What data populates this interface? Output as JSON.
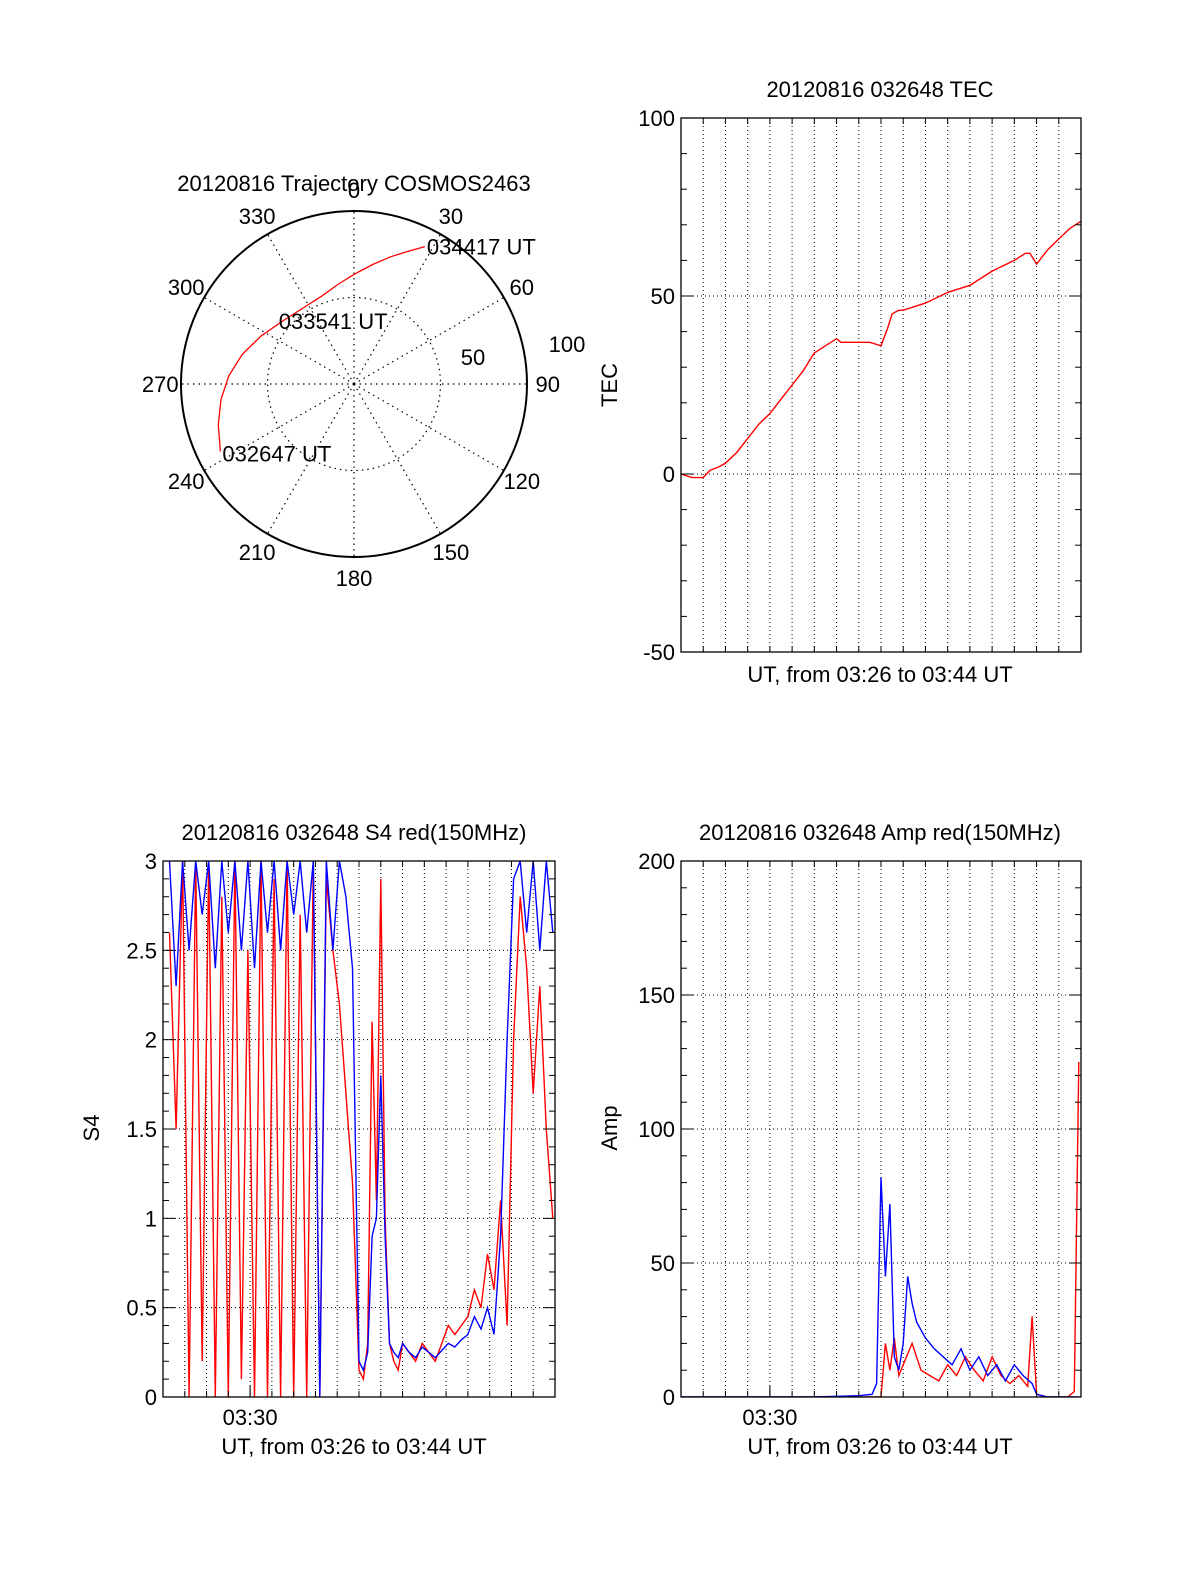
{
  "chart_data": [
    {
      "id": "polar",
      "type": "polar-trajectory",
      "title": "20120816 Trajectory COSMOS2463",
      "azimuth_labels": [
        {
          "az": 0,
          "text": "0"
        },
        {
          "az": 30,
          "text": "30"
        },
        {
          "az": 60,
          "text": "60"
        },
        {
          "az": 90,
          "text": "90"
        },
        {
          "az": 120,
          "text": "120"
        },
        {
          "az": 150,
          "text": "150"
        },
        {
          "az": 180,
          "text": "180"
        },
        {
          "az": 210,
          "text": "210"
        },
        {
          "az": 240,
          "text": "240"
        },
        {
          "az": 270,
          "text": "270"
        },
        {
          "az": 300,
          "text": "300"
        },
        {
          "az": 330,
          "text": "330"
        }
      ],
      "radial_labels": [
        "50",
        "100"
      ],
      "radial_max": 100,
      "ring_values": [
        50
      ],
      "series": [
        {
          "color": "#ff0000",
          "points_az_r": [
            [
              243.2,
              86.5
            ],
            [
              253.3,
              81.9
            ],
            [
              263.4,
              77.4
            ],
            [
              273.7,
              72.5
            ],
            [
              284.9,
              66.8
            ],
            [
              297.5,
              60.4
            ],
            [
              311.5,
              55.0
            ],
            [
              326.2,
              52.9
            ],
            [
              340.0,
              54.2
            ],
            [
              351.2,
              58.5
            ],
            [
              0.8,
              63.8
            ],
            [
              8.9,
              69.9
            ],
            [
              16.0,
              76.5
            ],
            [
              22.1,
              82.7
            ],
            [
              27.3,
              89.4
            ]
          ]
        }
      ],
      "point_labels": [
        {
          "text": "032647 UT",
          "az": 243.2,
          "r": 86.5
        },
        {
          "text": "033541 UT",
          "az": 311.5,
          "r": 55.0
        },
        {
          "text": "034417 UT",
          "az": 27.3,
          "r": 89.4
        }
      ]
    },
    {
      "id": "tec",
      "type": "line",
      "title": "20120816 032648 TEC",
      "xlabel": "UT, from 03:26 to 03:44 UT",
      "ylabel": "TEC",
      "xlim": [
        0,
        18.0
      ],
      "ylim": [
        -50,
        100
      ],
      "yticks": [
        -50,
        0,
        50,
        100
      ],
      "xtick_labels": [],
      "grid": true,
      "series": [
        {
          "color": "#ff0000",
          "x": [
            0.0,
            0.5,
            1.0,
            1.3,
            1.7,
            2.0,
            2.5,
            3.0,
            3.5,
            4.0,
            4.5,
            5.0,
            5.5,
            6.0,
            6.5,
            7.0,
            7.2,
            7.6,
            8.0,
            8.5,
            9.0,
            9.3,
            9.5,
            9.8,
            10.0,
            10.5,
            11.0,
            12.0,
            13.0,
            14.0,
            15.0,
            15.5,
            15.7,
            16.0,
            16.5,
            17.0,
            17.5,
            18.0
          ],
          "y": [
            0,
            -1,
            -1,
            1,
            2,
            3,
            6,
            10,
            14,
            17,
            21,
            25,
            29,
            34,
            36,
            38,
            37,
            37,
            37,
            37,
            36,
            41,
            45,
            46,
            46,
            47,
            48,
            51,
            53,
            57,
            60,
            62,
            62,
            59,
            63,
            66,
            69,
            71
          ]
        }
      ]
    },
    {
      "id": "s4",
      "type": "line",
      "title": "20120816 032648 S4 red(150MHz)",
      "xlabel": "UT, from 03:26 to 03:44 UT",
      "ylabel": "S4",
      "xlim": [
        0,
        18.0
      ],
      "ylim": [
        0,
        3
      ],
      "yticks": [
        0,
        0.5,
        1,
        1.5,
        2,
        2.5,
        3
      ],
      "ytick_labels": [
        "0",
        "0.5",
        "1",
        "1.5",
        "2",
        "2.5",
        "3"
      ],
      "xticks": [
        4
      ],
      "xtick_labels": [
        "03:30"
      ],
      "grid": true,
      "series": [
        {
          "color": "#ff0000",
          "x": [
            0.3,
            0.6,
            0.9,
            1.2,
            1.5,
            1.8,
            2.1,
            2.4,
            2.7,
            3.0,
            3.3,
            3.6,
            3.9,
            4.2,
            4.5,
            4.8,
            5.1,
            5.4,
            5.7,
            6.0,
            6.3,
            6.6,
            6.9,
            7.2,
            7.5,
            7.8,
            8.1,
            8.4,
            8.7,
            9.0,
            9.2,
            9.4,
            9.6,
            9.8,
            10.0,
            10.2,
            10.4,
            10.6,
            10.8,
            11.0,
            11.3,
            11.6,
            11.9,
            12.2,
            12.5,
            12.8,
            13.1,
            13.4,
            13.7,
            14.0,
            14.3,
            14.6,
            14.9,
            15.2,
            15.5,
            15.8,
            16.1,
            16.4,
            16.7,
            17.0,
            17.3,
            17.6,
            17.9
          ],
          "y": [
            2.6,
            1.5,
            3.0,
            0.0,
            3.0,
            0.2,
            3.0,
            0.0,
            2.8,
            0.0,
            3.0,
            0.1,
            2.5,
            0.0,
            3.0,
            0.0,
            2.9,
            0.0,
            3.0,
            0.0,
            2.7,
            0.0,
            3.0,
            0.0,
            2.9,
            2.5,
            2.2,
            1.7,
            1.2,
            0.15,
            0.1,
            0.3,
            2.1,
            1.1,
            2.9,
            1.0,
            0.3,
            0.2,
            0.15,
            0.3,
            0.25,
            0.2,
            0.3,
            0.25,
            0.2,
            0.3,
            0.4,
            0.35,
            0.4,
            0.45,
            0.6,
            0.5,
            0.8,
            0.6,
            1.1,
            0.4,
            2.0,
            2.8,
            2.4,
            1.7,
            2.3,
            1.5,
            1.0
          ]
        },
        {
          "color": "#0000ff",
          "x": [
            0.3,
            0.6,
            0.9,
            1.2,
            1.5,
            1.8,
            2.1,
            2.4,
            2.7,
            3.0,
            3.3,
            3.6,
            3.9,
            4.2,
            4.5,
            4.8,
            5.1,
            5.4,
            5.7,
            6.0,
            6.3,
            6.6,
            6.9,
            7.2,
            7.5,
            7.8,
            8.1,
            8.4,
            8.7,
            9.0,
            9.2,
            9.4,
            9.6,
            9.8,
            10.0,
            10.2,
            10.4,
            10.6,
            10.8,
            11.0,
            11.3,
            11.6,
            11.9,
            12.2,
            12.5,
            12.8,
            13.1,
            13.4,
            13.7,
            14.0,
            14.3,
            14.6,
            14.9,
            15.2,
            15.5,
            15.8,
            16.1,
            16.4,
            16.7,
            17.0,
            17.3,
            17.6,
            17.9
          ],
          "y": [
            3.0,
            2.3,
            3.0,
            2.5,
            3.0,
            2.7,
            3.0,
            2.4,
            3.0,
            2.6,
            3.0,
            2.5,
            3.0,
            2.4,
            3.0,
            2.6,
            3.0,
            2.5,
            3.0,
            2.7,
            3.0,
            2.6,
            3.0,
            0.0,
            3.0,
            2.5,
            3.0,
            2.8,
            2.4,
            0.2,
            0.15,
            0.25,
            0.9,
            1.0,
            1.8,
            0.9,
            0.3,
            0.25,
            0.22,
            0.3,
            0.25,
            0.22,
            0.28,
            0.25,
            0.22,
            0.26,
            0.3,
            0.28,
            0.32,
            0.35,
            0.45,
            0.38,
            0.5,
            0.35,
            0.9,
            2.0,
            2.9,
            3.0,
            2.6,
            3.0,
            2.5,
            3.0,
            2.6
          ]
        }
      ]
    },
    {
      "id": "amp",
      "type": "line",
      "title": "20120816 032648 Amp red(150MHz)",
      "xlabel": "UT, from 03:26 to 03:44 UT",
      "ylabel": "Amp",
      "xlim": [
        0,
        18.0
      ],
      "ylim": [
        0,
        200
      ],
      "yticks": [
        0,
        50,
        100,
        150,
        200
      ],
      "xticks": [
        4
      ],
      "xtick_labels": [
        "03:30"
      ],
      "grid": true,
      "series": [
        {
          "color": "#ff0000",
          "x": [
            0.0,
            2.0,
            4.0,
            6.0,
            8.0,
            9.0,
            9.2,
            9.4,
            9.6,
            9.8,
            10.0,
            10.4,
            10.8,
            11.2,
            11.6,
            12.0,
            12.4,
            12.8,
            13.2,
            13.6,
            14.0,
            14.4,
            14.8,
            15.2,
            15.6,
            15.8,
            16.0,
            16.5,
            17.0,
            17.4,
            17.7,
            17.9
          ],
          "y": [
            0,
            0,
            0,
            0,
            0,
            0,
            20,
            10,
            22,
            8,
            12,
            20,
            10,
            8,
            6,
            12,
            8,
            15,
            10,
            6,
            15,
            8,
            5,
            8,
            4,
            30,
            1,
            0,
            0,
            0,
            2,
            125
          ]
        },
        {
          "color": "#0000ff",
          "x": [
            0.0,
            2.0,
            4.0,
            6.0,
            8.0,
            8.6,
            8.8,
            9.0,
            9.2,
            9.4,
            9.6,
            9.8,
            10.0,
            10.2,
            10.4,
            10.6,
            10.8,
            11.0,
            11.4,
            11.8,
            12.2,
            12.6,
            13.0,
            13.4,
            13.8,
            14.2,
            14.6,
            15.0,
            15.4,
            15.8,
            16.0,
            16.5,
            17.0,
            17.9
          ],
          "y": [
            0,
            0,
            0,
            0,
            0.5,
            1,
            5,
            82,
            45,
            72,
            15,
            10,
            20,
            45,
            35,
            28,
            25,
            22,
            18,
            15,
            12,
            18,
            10,
            15,
            8,
            12,
            6,
            12,
            8,
            5,
            1,
            0,
            0,
            0
          ]
        }
      ]
    }
  ]
}
